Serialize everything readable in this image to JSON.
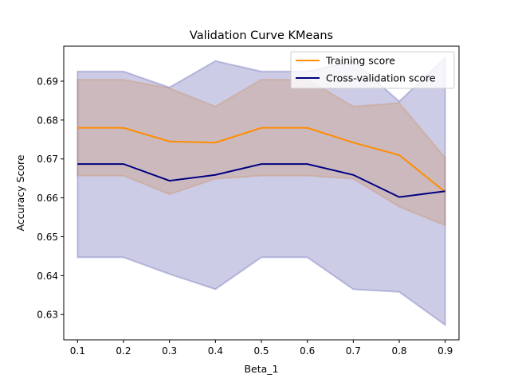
{
  "chart_data": {
    "type": "line",
    "title": "Validation Curve KMeans",
    "xlabel": "Beta_1",
    "ylabel": "Accuracy Score",
    "xlim": [
      0.07,
      0.93
    ],
    "ylim": [
      0.6235,
      0.699
    ],
    "xticks": [
      0.1,
      0.2,
      0.3,
      0.4,
      0.5,
      0.6,
      0.7,
      0.8,
      0.9
    ],
    "xtick_labels": [
      "0.1",
      "0.2",
      "0.3",
      "0.4",
      "0.5",
      "0.6",
      "0.7",
      "0.8",
      "0.9"
    ],
    "yticks": [
      0.63,
      0.64,
      0.65,
      0.66,
      0.67,
      0.68,
      0.69
    ],
    "ytick_labels": [
      "0.63",
      "0.64",
      "0.65",
      "0.66",
      "0.67",
      "0.68",
      "0.69"
    ],
    "grid": false,
    "legend_position": "top-right",
    "x": [
      0.1,
      0.2,
      0.3,
      0.4,
      0.5,
      0.6,
      0.7,
      0.8,
      0.9
    ],
    "series": [
      {
        "name": "Training score",
        "color": "#ff8c00",
        "values": [
          0.678,
          0.678,
          0.6745,
          0.6742,
          0.678,
          0.678,
          0.6742,
          0.671,
          0.6615
        ],
        "band_upper": [
          0.6904,
          0.6904,
          0.6882,
          0.6835,
          0.6904,
          0.6904,
          0.6835,
          0.6844,
          0.6703
        ],
        "band_lower": [
          0.6657,
          0.6657,
          0.6609,
          0.6649,
          0.6657,
          0.6657,
          0.6649,
          0.6577,
          0.6529
        ],
        "band_color": "#ff8c00"
      },
      {
        "name": "Cross-validation score",
        "color": "#000080",
        "values": [
          0.6687,
          0.6687,
          0.6644,
          0.6659,
          0.6687,
          0.6687,
          0.6659,
          0.6602,
          0.6617
        ],
        "band_upper": [
          0.6925,
          0.6925,
          0.6884,
          0.6952,
          0.6925,
          0.6925,
          0.6952,
          0.6848,
          0.696
        ],
        "band_lower": [
          0.6447,
          0.6447,
          0.6404,
          0.6365,
          0.6447,
          0.6447,
          0.6365,
          0.6358,
          0.6273
        ],
        "band_color": "#000080"
      }
    ]
  }
}
